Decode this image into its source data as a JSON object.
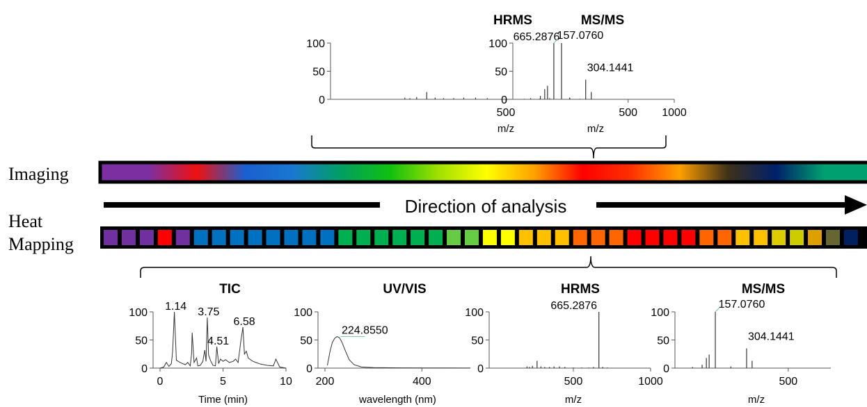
{
  "row_labels": {
    "imaging": "Imaging",
    "heat_line1": "Heat",
    "heat_line2": "Mapping"
  },
  "direction_label": "Direction of analysis",
  "colors": {
    "imaging_gradient": [
      "#7B2FA0",
      "#7B2FA0",
      "#F01010",
      "#1A5FD0",
      "#1978D0",
      "#00A060",
      "#10C010",
      "#A0E000",
      "#FFFF00",
      "#FFA000",
      "#FF0000",
      "#FF3000",
      "#FFA000",
      "#403018",
      "#00206A",
      "#00A070",
      "#00A070"
    ],
    "heat_cells": [
      "#7030A0",
      "#7030A0",
      "#7030A0",
      "#FF0000",
      "#7030A0",
      "#0070C0",
      "#0070C0",
      "#0070C0",
      "#0070C0",
      "#0070C0",
      "#0070C0",
      "#0070C0",
      "#0070C0",
      "#00B050",
      "#00B050",
      "#00B050",
      "#00B050",
      "#00B050",
      "#00B050",
      "#66CC44",
      "#66CC44",
      "#FFFF00",
      "#FFFF00",
      "#FFC000",
      "#FFC000",
      "#FFC000",
      "#FF6600",
      "#FF6600",
      "#FF6600",
      "#FF0000",
      "#FF0000",
      "#FF0000",
      "#FF0000",
      "#FF6600",
      "#FF6600",
      "#FFC000",
      "#FFC000",
      "#DDCC00",
      "#CCCC00",
      "#DDA000",
      "#666633",
      "#002060",
      "#006060",
      "#008080",
      "#00A070",
      "#00B050",
      "#00B050"
    ]
  },
  "chart_data": [
    {
      "id": "top-hrms",
      "type": "line",
      "title": "HRMS",
      "xlabel": "m/z",
      "ylabel": "",
      "xlim": [
        0,
        1000
      ],
      "ylim": [
        0,
        100
      ],
      "xticks": [
        500,
        1000
      ],
      "yticks": [
        0,
        50,
        100
      ],
      "peak_labels": [
        {
          "x": 665.2876,
          "y": 100,
          "text": "665.2876"
        }
      ],
      "x": [
        200,
        215,
        235,
        265,
        290,
        315,
        345,
        375,
        410,
        445,
        500,
        555,
        600,
        630,
        665.2876,
        690,
        720
      ],
      "values": [
        3,
        2,
        4,
        13,
        3,
        2,
        2,
        3,
        3,
        2,
        1,
        1,
        1,
        2,
        100,
        2,
        1
      ]
    },
    {
      "id": "top-msms",
      "type": "line",
      "title": "MS/MS",
      "xlabel": "m/z",
      "ylabel": "",
      "xlim": [
        0,
        700
      ],
      "ylim": [
        0,
        100
      ],
      "xticks": [
        500
      ],
      "yticks": [
        0,
        50,
        100
      ],
      "peak_labels": [
        {
          "x": 157.076,
          "y": 100,
          "text": "157.0760"
        },
        {
          "x": 304.1441,
          "y": 35,
          "text": "304.1441"
        }
      ],
      "x": [
        50,
        95,
        115,
        128,
        157.076,
        230,
        304.1441,
        330
      ],
      "values": [
        2,
        6,
        18,
        24,
        100,
        3,
        35,
        13
      ]
    },
    {
      "id": "bottom-tic",
      "type": "line",
      "title": "TIC",
      "xlabel": "Time (min)",
      "ylabel": "",
      "xlim": [
        0,
        10
      ],
      "ylim": [
        0,
        100
      ],
      "xticks": [
        0,
        5,
        10
      ],
      "yticks": [
        0,
        50,
        100
      ],
      "peak_labels": [
        {
          "x": 1.14,
          "y": 100,
          "text": "1.14"
        },
        {
          "x": 3.75,
          "y": 90,
          "text": "3.75"
        },
        {
          "x": 4.51,
          "y": 38,
          "text": "4.51"
        },
        {
          "x": 6.58,
          "y": 73,
          "text": "6.58"
        }
      ],
      "x": [
        0,
        0.3,
        0.5,
        0.7,
        0.9,
        1.0,
        1.14,
        1.3,
        1.6,
        2.0,
        2.2,
        2.4,
        2.5,
        2.55,
        2.7,
        2.9,
        3.0,
        3.2,
        3.4,
        3.55,
        3.65,
        3.75,
        3.85,
        4.0,
        4.2,
        4.4,
        4.51,
        4.65,
        4.8,
        5.0,
        5.2,
        5.5,
        5.8,
        6.0,
        6.2,
        6.4,
        6.58,
        6.7,
        6.85,
        7.0,
        7.3,
        7.6,
        8.0,
        8.5,
        9.0,
        9.2,
        9.5,
        10.0
      ],
      "values": [
        0,
        2,
        10,
        3,
        8,
        30,
        100,
        14,
        10,
        6,
        10,
        4,
        25,
        63,
        10,
        18,
        4,
        5,
        12,
        32,
        12,
        90,
        24,
        14,
        5,
        4,
        38,
        8,
        16,
        12,
        15,
        10,
        12,
        16,
        10,
        45,
        73,
        25,
        30,
        18,
        13,
        10,
        7,
        5,
        4,
        16,
        2,
        0
      ]
    },
    {
      "id": "bottom-uvvis",
      "type": "line",
      "title": "UV/VIS",
      "xlabel": "wavelength (nm)",
      "ylabel": "",
      "xlim": [
        200,
        500
      ],
      "ylim": [
        0,
        100
      ],
      "xticks": [
        200,
        400
      ],
      "yticks": [
        0,
        50,
        100
      ],
      "peak_labels": [
        {
          "x": 224.855,
          "y": 56,
          "text": "224.8550"
        }
      ],
      "x": [
        205,
        210,
        215,
        220,
        224.855,
        230,
        235,
        240,
        250,
        260,
        275,
        300,
        350,
        400,
        450,
        500
      ],
      "values": [
        5,
        28,
        45,
        53,
        56,
        54,
        46,
        35,
        15,
        6,
        2,
        1,
        0.5,
        0.3,
        0.2,
        0.1
      ]
    },
    {
      "id": "bottom-hrms",
      "type": "line",
      "title": "HRMS",
      "xlabel": "m/z",
      "ylabel": "",
      "xlim": [
        0,
        1000
      ],
      "ylim": [
        0,
        100
      ],
      "xticks": [
        500,
        1000
      ],
      "yticks": [
        0,
        50,
        100
      ],
      "peak_labels": [
        {
          "x": 665.2876,
          "y": 100,
          "text": "665.2876"
        }
      ],
      "x": [
        200,
        215,
        235,
        265,
        290,
        315,
        345,
        375,
        410,
        445,
        500,
        555,
        600,
        630,
        665.2876,
        690,
        720
      ],
      "values": [
        3,
        2,
        4,
        13,
        3,
        2,
        2,
        3,
        3,
        2,
        1,
        1,
        1,
        2,
        100,
        2,
        1
      ]
    },
    {
      "id": "bottom-msms",
      "type": "line",
      "title": "MS/MS",
      "xlabel": "m/z",
      "ylabel": "",
      "xlim": [
        0,
        700
      ],
      "ylim": [
        0,
        100
      ],
      "xticks": [
        500
      ],
      "yticks": [
        0,
        50,
        100
      ],
      "peak_labels": [
        {
          "x": 157.076,
          "y": 100,
          "text": "157.0760"
        },
        {
          "x": 304.1441,
          "y": 35,
          "text": "304.1441"
        }
      ],
      "x": [
        50,
        95,
        115,
        128,
        157.076,
        230,
        304.1441,
        330
      ],
      "values": [
        2,
        6,
        18,
        24,
        100,
        3,
        35,
        13
      ]
    }
  ]
}
